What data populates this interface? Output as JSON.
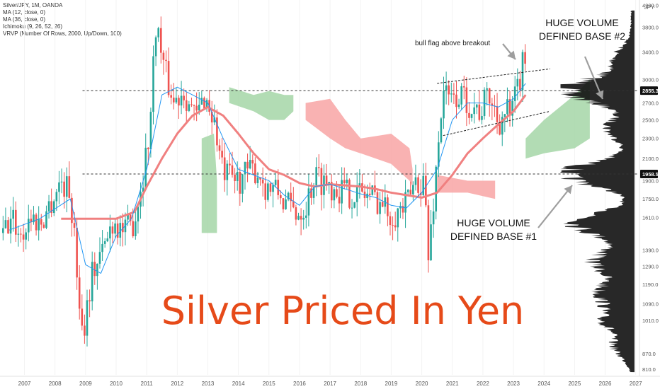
{
  "legend": {
    "symbol": "Silver/JPY, 1M, OANDA",
    "ma1": "MA (12, close, 0)",
    "ma2": "MA (36, close, 0)",
    "ichimoku": "Ichimoku (9, 26, 52, 26)",
    "vrvp": "VRVP (Number Of Rows, 2000, Up/Down, 100)"
  },
  "currency_label": "JPY",
  "annotations": {
    "title": "Silver Priced In Yen",
    "bull_flag": "bull flag above breakout",
    "base2_line1": "HUGE VOLUME",
    "base2_line2": "DEFINED BASE #2",
    "base1_line1": "HUGE VOLUME",
    "base1_line2": "DEFINED BASE #1"
  },
  "colors": {
    "up": "#26a69a",
    "down": "#ef5350",
    "ma12": "#2196f3",
    "ma36": "#f08080",
    "cloud_bull": "#a5d6a7",
    "cloud_bear": "#f8a5a5",
    "volume": "#111111",
    "arrow": "#9e9e9e",
    "title": "#e64a19"
  },
  "chart_data": {
    "type": "candlestick",
    "symbol": "Silver/JPY",
    "timeframe": "1M",
    "x_tick_labels": [
      "2007",
      "2008",
      "2009",
      "2010",
      "2011",
      "2012",
      "2013",
      "2014",
      "2015",
      "2016",
      "2017",
      "2018",
      "2019",
      "2020",
      "2021",
      "2022",
      "2023",
      "2024",
      "2025",
      "2026",
      "2027"
    ],
    "y_tick_labels": [
      "4200.0",
      "3800.0",
      "3400.0",
      "3000.0",
      "2700.0",
      "2500.0",
      "2300.0",
      "2100.0",
      "1900.0",
      "1750.0",
      "1610.0",
      "1390.0",
      "1290.0",
      "1190.0",
      "1090.0",
      "1010.0",
      "870.0",
      "810.0"
    ],
    "y_scale": "log",
    "ylim": [
      790,
      4300
    ],
    "xlim": [
      2006.2,
      2027.1
    ],
    "price_labels": [
      {
        "value": 2855.3,
        "text": "2855.3"
      },
      {
        "value": 1958.5,
        "text": "1958.5"
      }
    ],
    "horizontal_levels": [
      2855.3,
      1958.5
    ],
    "price_anchors": [
      [
        2006.3,
        1500
      ],
      [
        2006.6,
        1600
      ],
      [
        2006.9,
        1480
      ],
      [
        2007.2,
        1620
      ],
      [
        2007.5,
        1560
      ],
      [
        2007.8,
        1700
      ],
      [
        2008.2,
        1900
      ],
      [
        2008.5,
        1800
      ],
      [
        2008.9,
        950
      ],
      [
        2009.2,
        1250
      ],
      [
        2009.6,
        1400
      ],
      [
        2009.9,
        1600
      ],
      [
        2010.3,
        1500
      ],
      [
        2010.6,
        1600
      ],
      [
        2010.9,
        2000
      ],
      [
        2011.1,
        2400
      ],
      [
        2011.3,
        3900
      ],
      [
        2011.6,
        3100
      ],
      [
        2011.9,
        2700
      ],
      [
        2012.2,
        2900
      ],
      [
        2012.6,
        2500
      ],
      [
        2012.9,
        2800
      ],
      [
        2013.2,
        2500
      ],
      [
        2013.5,
        1950
      ],
      [
        2013.9,
        1900
      ],
      [
        2014.2,
        1950
      ],
      [
        2014.6,
        2000
      ],
      [
        2014.9,
        1850
      ],
      [
        2015.3,
        1800
      ],
      [
        2015.6,
        1700
      ],
      [
        2015.9,
        1650
      ],
      [
        2016.2,
        1700
      ],
      [
        2016.5,
        1950
      ],
      [
        2016.8,
        1900
      ],
      [
        2017.2,
        1850
      ],
      [
        2017.6,
        1800
      ],
      [
        2017.9,
        1800
      ],
      [
        2018.2,
        1790
      ],
      [
        2018.6,
        1750
      ],
      [
        2018.9,
        1650
      ],
      [
        2019.2,
        1650
      ],
      [
        2019.5,
        1700
      ],
      [
        2019.8,
        1900
      ],
      [
        2020.1,
        1900
      ],
      [
        2020.2,
        1300
      ],
      [
        2020.5,
        2100
      ],
      [
        2020.7,
        2900
      ],
      [
        2020.9,
        2700
      ],
      [
        2021.2,
        2800
      ],
      [
        2021.6,
        2700
      ],
      [
        2021.9,
        2600
      ],
      [
        2022.2,
        2800
      ],
      [
        2022.5,
        2500
      ],
      [
        2022.8,
        2600
      ],
      [
        2022.9,
        2500
      ],
      [
        2023.2,
        3000
      ],
      [
        2023.3,
        3200
      ],
      [
        2023.45,
        3400
      ]
    ],
    "ma12_path": [
      [
        2006.5,
        1520
      ],
      [
        2007.5,
        1600
      ],
      [
        2008.5,
        1750
      ],
      [
        2009.0,
        1300
      ],
      [
        2009.5,
        1250
      ],
      [
        2010.0,
        1480
      ],
      [
        2010.5,
        1600
      ],
      [
        2011.0,
        2000
      ],
      [
        2011.5,
        2800
      ],
      [
        2012.0,
        2900
      ],
      [
        2012.5,
        2800
      ],
      [
        2013.0,
        2700
      ],
      [
        2013.5,
        2300
      ],
      [
        2014.0,
        2000
      ],
      [
        2014.5,
        1950
      ],
      [
        2015.0,
        1900
      ],
      [
        2015.5,
        1780
      ],
      [
        2016.0,
        1700
      ],
      [
        2016.5,
        1850
      ],
      [
        2017.0,
        1870
      ],
      [
        2017.5,
        1830
      ],
      [
        2018.0,
        1790
      ],
      [
        2018.5,
        1760
      ],
      [
        2019.0,
        1700
      ],
      [
        2019.5,
        1680
      ],
      [
        2020.0,
        1800
      ],
      [
        2020.5,
        2000
      ],
      [
        2021.0,
        2500
      ],
      [
        2021.5,
        2700
      ],
      [
        2022.0,
        2700
      ],
      [
        2022.5,
        2650
      ],
      [
        2023.0,
        2750
      ],
      [
        2023.4,
        2950
      ]
    ],
    "ma36_path": [
      [
        2008.2,
        1600
      ],
      [
        2009.0,
        1600
      ],
      [
        2010.0,
        1600
      ],
      [
        2010.6,
        1650
      ],
      [
        2011.0,
        1850
      ],
      [
        2011.5,
        2100
      ],
      [
        2012.0,
        2350
      ],
      [
        2012.5,
        2550
      ],
      [
        2013.0,
        2650
      ],
      [
        2013.5,
        2550
      ],
      [
        2014.0,
        2350
      ],
      [
        2014.5,
        2150
      ],
      [
        2015.0,
        2000
      ],
      [
        2015.5,
        1950
      ],
      [
        2016.0,
        1880
      ],
      [
        2016.5,
        1850
      ],
      [
        2017.0,
        1870
      ],
      [
        2017.5,
        1860
      ],
      [
        2018.0,
        1850
      ],
      [
        2018.5,
        1830
      ],
      [
        2019.0,
        1800
      ],
      [
        2019.5,
        1780
      ],
      [
        2020.0,
        1760
      ],
      [
        2020.5,
        1800
      ],
      [
        2021.0,
        1950
      ],
      [
        2021.5,
        2150
      ],
      [
        2022.0,
        2300
      ],
      [
        2022.5,
        2450
      ],
      [
        2023.0,
        2600
      ],
      [
        2023.4,
        2800
      ]
    ],
    "cloud_regions": [
      {
        "polarity": "bullish",
        "top": [
          [
            2012.8,
            2300
          ],
          [
            2013.2,
            2350
          ],
          [
            2013.3,
            1900
          ],
          [
            2013.3,
            1550
          ]
        ],
        "bottom": [
          [
            2012.8,
            1500
          ],
          [
            2013.3,
            1500
          ]
        ]
      },
      {
        "polarity": "bullish",
        "top": [
          [
            2013.7,
            2900
          ],
          [
            2014.5,
            2800
          ],
          [
            2015.0,
            2850
          ],
          [
            2015.5,
            2800
          ],
          [
            2015.8,
            2800
          ]
        ],
        "bottom": [
          [
            2013.7,
            2700
          ],
          [
            2014.5,
            2600
          ],
          [
            2015.0,
            2500
          ],
          [
            2015.5,
            2500
          ],
          [
            2015.8,
            2600
          ]
        ]
      },
      {
        "polarity": "bearish",
        "top": [
          [
            2016.2,
            2700
          ],
          [
            2017.0,
            2750
          ],
          [
            2017.5,
            2500
          ],
          [
            2018.0,
            2300
          ],
          [
            2019.0,
            2350
          ],
          [
            2019.6,
            2200
          ],
          [
            2019.7,
            2000
          ]
        ],
        "bottom": [
          [
            2016.2,
            2500
          ],
          [
            2017.0,
            2300
          ],
          [
            2017.5,
            2200
          ],
          [
            2018.0,
            2150
          ],
          [
            2019.0,
            2050
          ],
          [
            2019.6,
            1900
          ],
          [
            2019.7,
            1850
          ]
        ]
      },
      {
        "polarity": "bearish",
        "top": [
          [
            2020.5,
            1950
          ],
          [
            2021.5,
            1900
          ],
          [
            2022.4,
            1900
          ]
        ],
        "bottom": [
          [
            2020.5,
            1800
          ],
          [
            2021.5,
            1800
          ],
          [
            2022.4,
            1750
          ]
        ]
      },
      {
        "polarity": "bullish",
        "top": [
          [
            2023.4,
            2300
          ],
          [
            2024.0,
            2500
          ],
          [
            2025.0,
            2800
          ],
          [
            2025.5,
            3000
          ]
        ],
        "bottom": [
          [
            2023.4,
            2100
          ],
          [
            2024.0,
            2150
          ],
          [
            2025.0,
            2200
          ],
          [
            2025.5,
            2300
          ]
        ]
      }
    ],
    "trendlines": [
      {
        "style": "dashed",
        "from": [
          2020.5,
          2950
        ],
        "to": [
          2024.2,
          3150
        ]
      },
      {
        "style": "dashed",
        "from": [
          2020.7,
          2330
        ],
        "to": [
          2024.2,
          2600
        ]
      }
    ]
  }
}
